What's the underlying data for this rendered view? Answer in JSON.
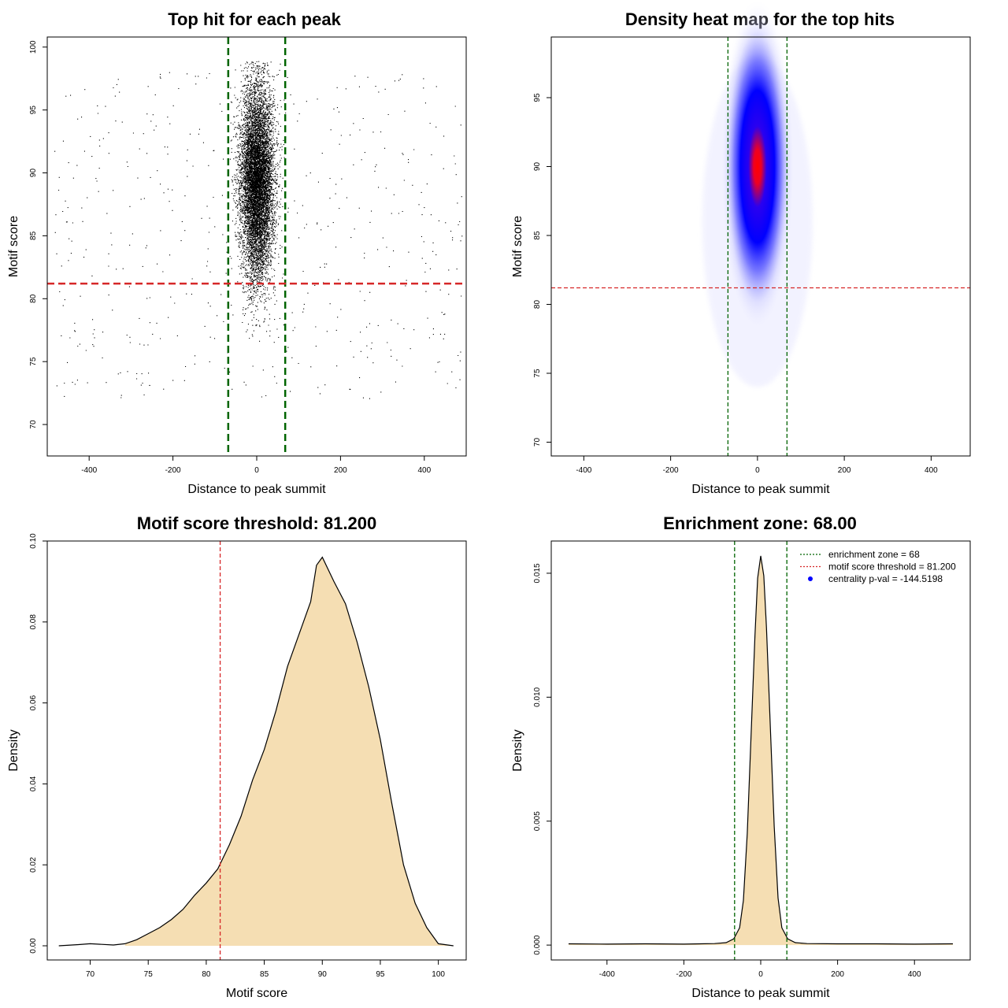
{
  "chart_data": [
    {
      "type": "scatter",
      "title": "Top hit for each peak",
      "xlabel": "Distance to peak summit",
      "ylabel": "Motif score",
      "xlim": [
        -500,
        500
      ],
      "ylim": [
        67.5,
        100.8
      ],
      "xticks": [
        -400,
        -200,
        0,
        200,
        400
      ],
      "yticks": [
        70,
        75,
        80,
        85,
        90,
        95,
        100
      ],
      "grid": false,
      "reference_lines": [
        {
          "orientation": "vertical",
          "value": -68,
          "color": "#006400",
          "style": "dashed"
        },
        {
          "orientation": "vertical",
          "value": 68,
          "color": "#006400",
          "style": "dashed"
        },
        {
          "orientation": "horizontal",
          "value": 81.2,
          "color": "#d62728",
          "style": "dashed"
        }
      ],
      "point_color": "#000000",
      "distribution": {
        "central_points": 9000,
        "central_x_mean": 0,
        "central_x_sd": 20,
        "central_y_mean": 89.3,
        "central_y_sd": 3.8,
        "background_points": 520,
        "background_x_range": [
          -490,
          490
        ],
        "background_y_range": [
          72,
          98
        ]
      }
    },
    {
      "type": "heatmap",
      "title": "Density heat map for the top hits",
      "xlabel": "Distance to peak summit",
      "ylabel": "Motif score",
      "xlim": [
        -475,
        490
      ],
      "ylim": [
        69.0,
        99.4
      ],
      "xticks": [
        -400,
        -200,
        0,
        200,
        400
      ],
      "yticks": [
        70,
        75,
        80,
        85,
        90,
        95
      ],
      "grid": false,
      "color_scale": [
        "#ffffff",
        "#0000ff",
        "#ff0000"
      ],
      "peak": {
        "x": 0,
        "y": 90.0
      },
      "reference_lines": [
        {
          "orientation": "vertical",
          "value": -68,
          "color": "#006400",
          "style": "dashed"
        },
        {
          "orientation": "vertical",
          "value": 68,
          "color": "#006400",
          "style": "dashed"
        },
        {
          "orientation": "horizontal",
          "value": 81.2,
          "color": "#d62728",
          "style": "dashed"
        }
      ]
    },
    {
      "type": "area",
      "title": "Motif score threshold: 81.200",
      "xlabel": "Motif score",
      "ylabel": "Density",
      "xlim": [
        66.3,
        102.4
      ],
      "ylim": [
        -0.0035,
        0.1
      ],
      "xticks": [
        70,
        75,
        80,
        85,
        90,
        95,
        100
      ],
      "yticks": [
        0.0,
        0.02,
        0.04,
        0.06,
        0.08,
        0.1
      ],
      "ytick_labels": [
        "0.00",
        "0.02",
        "0.04",
        "0.06",
        "0.08",
        "0.10"
      ],
      "grid": false,
      "fill_color": "#f5deb3",
      "fill_from": 73,
      "x": [
        67.3,
        69,
        70,
        72,
        73,
        74,
        75,
        76,
        77,
        78,
        79,
        80,
        81,
        82,
        83,
        84,
        85,
        86,
        87,
        88,
        89,
        89.5,
        90,
        91,
        92,
        93,
        94,
        95,
        96,
        97,
        98,
        99,
        100,
        101.3
      ],
      "y": [
        0.0,
        0.0003,
        0.0005,
        0.0002,
        0.0005,
        0.0015,
        0.003,
        0.0045,
        0.0065,
        0.009,
        0.0125,
        0.0155,
        0.019,
        0.025,
        0.032,
        0.041,
        0.0485,
        0.058,
        0.069,
        0.077,
        0.085,
        0.094,
        0.096,
        0.09,
        0.0845,
        0.075,
        0.064,
        0.051,
        0.035,
        0.02,
        0.0105,
        0.0045,
        0.0005,
        0.0
      ],
      "reference_lines": [
        {
          "orientation": "vertical",
          "value": 81.2,
          "color": "#d62728",
          "style": "dashed"
        }
      ]
    },
    {
      "type": "area",
      "title": "Enrichment zone: 68.00",
      "xlabel": "Distance to peak summit",
      "ylabel": "Density",
      "xlim": [
        -545,
        545
      ],
      "ylim": [
        -0.0006,
        0.0163
      ],
      "xticks": [
        -400,
        -200,
        0,
        200,
        400
      ],
      "yticks": [
        0.0,
        0.005,
        0.01,
        0.015
      ],
      "ytick_labels": [
        "0.000",
        "0.005",
        "0.010",
        "0.015"
      ],
      "grid": false,
      "fill_color": "#f5deb3",
      "x": [
        -500,
        -400,
        -300,
        -200,
        -120,
        -90,
        -70,
        -55,
        -45,
        -35,
        -25,
        -15,
        -8,
        0,
        8,
        15,
        25,
        35,
        45,
        55,
        70,
        90,
        120,
        200,
        300,
        400,
        500
      ],
      "y": [
        5e-05,
        4e-05,
        5e-05,
        4e-05,
        6e-05,
        0.0001,
        0.00025,
        0.0007,
        0.0018,
        0.0045,
        0.0085,
        0.0125,
        0.0148,
        0.0157,
        0.0149,
        0.0128,
        0.0088,
        0.0048,
        0.0019,
        0.0007,
        0.00025,
        0.0001,
        6e-05,
        5e-05,
        5e-05,
        4e-05,
        5e-05
      ],
      "reference_lines": [
        {
          "orientation": "vertical",
          "value": -68,
          "color": "#006400",
          "style": "dashed"
        },
        {
          "orientation": "vertical",
          "value": 68,
          "color": "#006400",
          "style": "dashed"
        }
      ],
      "legend": {
        "placement": "top-right",
        "entries": [
          {
            "label": "enrichment zone = 68",
            "color": "#006400",
            "marker": "dotted-line"
          },
          {
            "label": "motif score threshold = 81.200",
            "color": "#d62728",
            "marker": "dotted-line"
          },
          {
            "label": "centrality p-val = -144.5198",
            "color": "#0000ff",
            "marker": "point"
          }
        ]
      }
    }
  ]
}
